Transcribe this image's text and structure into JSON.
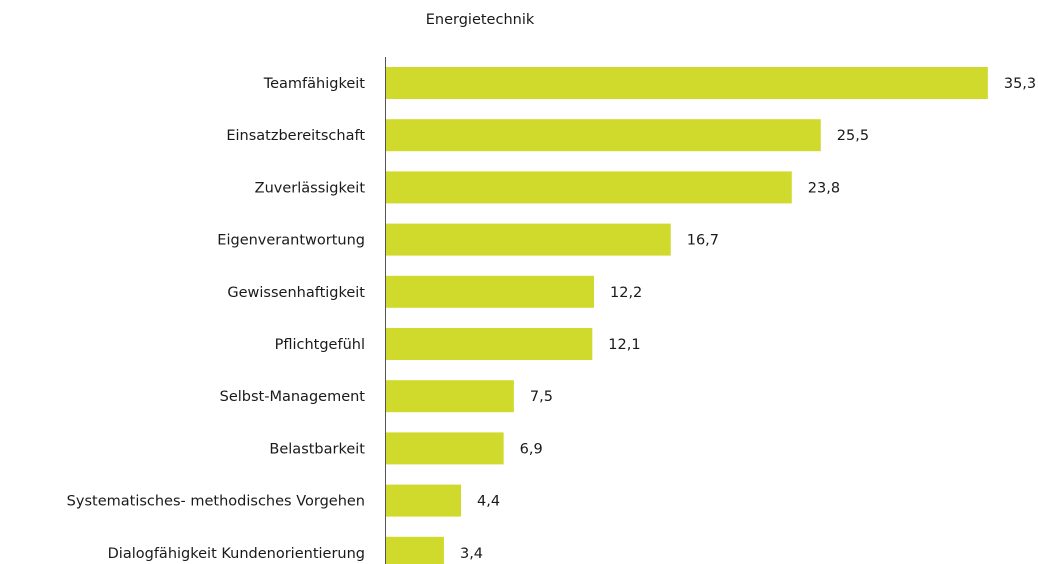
{
  "chart_data": {
    "type": "hbar",
    "title": "Energietechnik",
    "categories": [
      "Teamfähigkeit",
      "Einsatzbereitschaft",
      "Zuverlässigkeit",
      "Eigenverantwortung",
      "Gewissenhaftigkeit",
      "Pflichtgefühl",
      "Selbst-Management",
      "Belastbarkeit",
      "Systematisches- methodisches Vorgehen",
      "Dialogfähigkeit Kundenorientierung"
    ],
    "values": [
      35.3,
      25.5,
      23.8,
      16.7,
      12.2,
      12.1,
      7.5,
      6.9,
      4.4,
      3.4
    ],
    "value_labels": [
      "35,3",
      "25,5",
      "23,8",
      "16,7",
      "12,2",
      "12,1",
      "7,5",
      "6,9",
      "4,4",
      "3,4"
    ],
    "color": "#d0da2c"
  }
}
